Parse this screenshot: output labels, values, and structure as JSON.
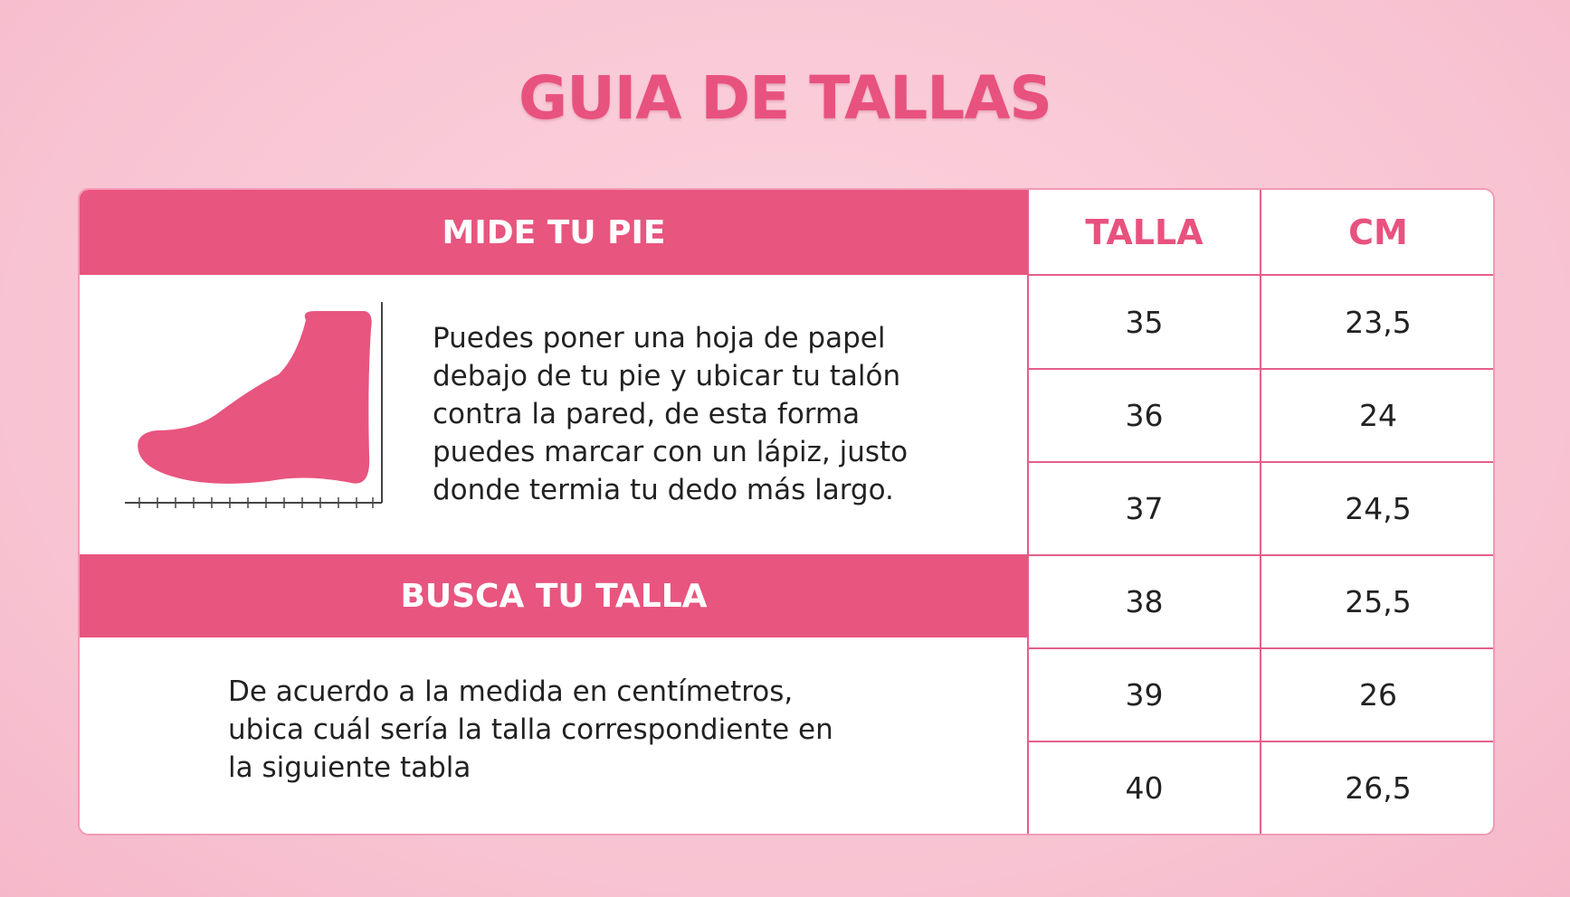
{
  "title": "GUIA DE  TALLAS",
  "measure": {
    "heading": "MIDE TU PIE",
    "text": "Puedes poner una hoja de papel debajo de tu pie y ubicar tu talón contra la pared, de esta forma puedes marcar con un lápiz, justo donde termia tu dedo más largo.",
    "icon": "foot-ruler-icon"
  },
  "find": {
    "heading": "BUSCA  TU TALLA",
    "text": "De acuerdo a la medida en centímetros, ubica cuál sería la talla correspondiente en la siguiente  tabla"
  },
  "table": {
    "headers": [
      "TALLA",
      "CM"
    ],
    "rows": [
      [
        "35",
        "23,5"
      ],
      [
        "36",
        "24"
      ],
      [
        "37",
        "24,5"
      ],
      [
        "38",
        "25,5"
      ],
      [
        "39",
        "26"
      ],
      [
        "40",
        "26,5"
      ]
    ]
  },
  "colors": {
    "accent": "#e8557f",
    "background": "#f8c3d2"
  }
}
